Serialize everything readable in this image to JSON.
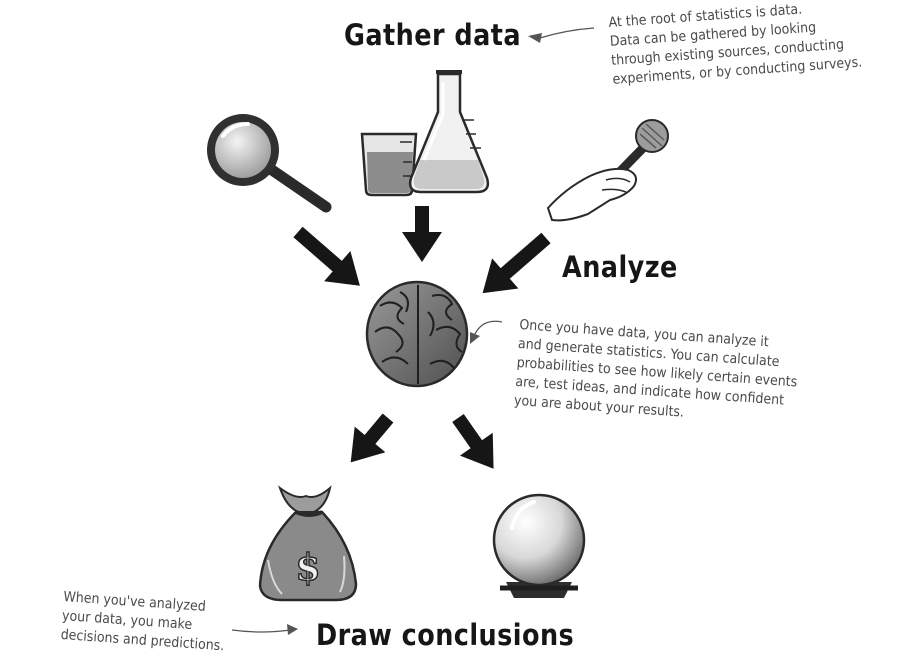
{
  "headings": {
    "gather": "Gather data",
    "analyze": "Analyze",
    "conclude": "Draw conclusions"
  },
  "notes": {
    "gather": [
      "At the root of statistics is data.",
      "Data can be gathered by looking",
      "through existing sources, conducting",
      "experiments, or by conducting surveys."
    ],
    "analyze": [
      "Once you have data, you can analyze it",
      "and generate statistics. You can calculate",
      "probabilities to see how likely certain events",
      "are, test ideas, and indicate how confident",
      "you are about your results."
    ],
    "conclude": [
      "When you've analyzed",
      "your data, you make",
      "decisions and predictions."
    ]
  },
  "icons": [
    "magnifying-glass-icon",
    "lab-glassware-icon",
    "microphone-icon",
    "brain-icon",
    "money-bag-icon",
    "crystal-ball-icon"
  ],
  "money_bag_symbol": "$"
}
